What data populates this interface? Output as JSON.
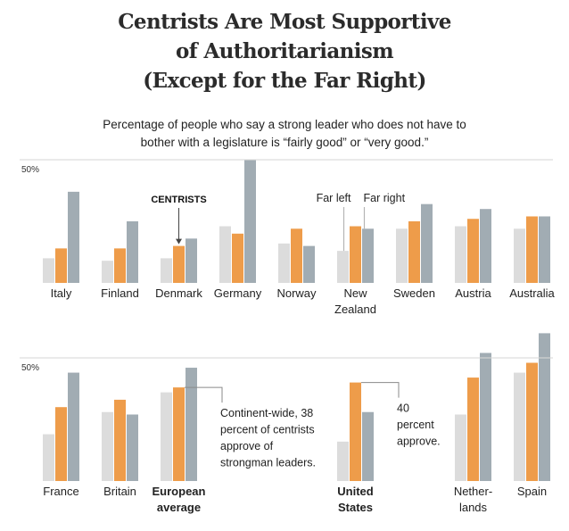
{
  "title_lines": [
    "Centrists Are Most Supportive",
    "of Authoritarianism",
    "(Except for the Far Right)"
  ],
  "subtitle_lines": [
    "Percentage of people who say a strong leader who does not have to",
    "bother with a legislature is “fairly good” or “very good.”"
  ],
  "colors": {
    "far_left": "#dcdcdc",
    "centrists": "#ee9c4a",
    "far_right": "#a1acb3",
    "gridline": "#d8d8d8",
    "annotation_line": "#8a8a8a"
  },
  "chart_data": [
    {
      "type": "bar",
      "title": "Centrists Are Most Supportive of Authoritarianism (Except for the Far Right)",
      "panel": "top",
      "ylabel": "",
      "xlabel": "",
      "ylim": [
        0,
        50
      ],
      "yticks": [
        {
          "value": 50,
          "label": "50%"
        }
      ],
      "grid": true,
      "series_names": [
        "Far left",
        "Centrists",
        "Far right"
      ],
      "categories": [
        {
          "label": [
            "Italy"
          ],
          "bold": false,
          "slot": 0
        },
        {
          "label": [
            "Finland"
          ],
          "bold": false,
          "slot": 1
        },
        {
          "label": [
            "Denmark"
          ],
          "bold": false,
          "slot": 2
        },
        {
          "label": [
            "Germany"
          ],
          "bold": false,
          "slot": 3
        },
        {
          "label": [
            "Norway"
          ],
          "bold": false,
          "slot": 4
        },
        {
          "label": [
            "New",
            "Zealand"
          ],
          "bold": false,
          "slot": 5
        },
        {
          "label": [
            "Sweden"
          ],
          "bold": false,
          "slot": 6
        },
        {
          "label": [
            "Austria"
          ],
          "bold": false,
          "slot": 7
        },
        {
          "label": [
            "Australia"
          ],
          "bold": false,
          "slot": 8
        }
      ],
      "series": [
        {
          "name": "Far left",
          "values": [
            10,
            9,
            10,
            23,
            16,
            13,
            22,
            23,
            22
          ]
        },
        {
          "name": "Centrists",
          "values": [
            14,
            14,
            15,
            20,
            22,
            23,
            25,
            26,
            27
          ]
        },
        {
          "name": "Far right",
          "values": [
            37,
            25,
            18,
            50,
            15,
            22,
            32,
            30,
            27
          ]
        }
      ],
      "annotations": [
        {
          "text": "CENTRISTS",
          "style": "bold",
          "target_category": "Denmark",
          "target_series": "Centrists",
          "kind": "arrow"
        },
        {
          "text": "Far left",
          "style": "normal",
          "target_category": "New Zealand",
          "target_series": "Far left",
          "kind": "line"
        },
        {
          "text": "Far right",
          "style": "normal",
          "target_category": "New Zealand",
          "target_series": "Far right",
          "kind": "line"
        }
      ]
    },
    {
      "type": "bar",
      "panel": "bottom",
      "ylabel": "",
      "xlabel": "",
      "ylim": [
        0,
        50
      ],
      "yticks": [
        {
          "value": 50,
          "label": "50%"
        }
      ],
      "grid": true,
      "series_names": [
        "Far left",
        "Centrists",
        "Far right"
      ],
      "categories": [
        {
          "label": [
            "France"
          ],
          "bold": false,
          "slot": 0
        },
        {
          "label": [
            "Britain"
          ],
          "bold": false,
          "slot": 1
        },
        {
          "label": [
            "European",
            "average"
          ],
          "bold": true,
          "slot": 2
        },
        {
          "label": [
            "United",
            "States"
          ],
          "bold": true,
          "slot": 5
        },
        {
          "label": [
            "Nether-",
            "lands"
          ],
          "bold": false,
          "slot": 7
        },
        {
          "label": [
            "Spain"
          ],
          "bold": false,
          "slot": 8
        }
      ],
      "series": [
        {
          "name": "Far left",
          "values": [
            19,
            28,
            36,
            16,
            27,
            44
          ]
        },
        {
          "name": "Centrists",
          "values": [
            30,
            33,
            38,
            40,
            42,
            48
          ]
        },
        {
          "name": "Far right",
          "values": [
            44,
            27,
            46,
            28,
            52,
            60
          ]
        }
      ],
      "annotations": [
        {
          "lines": [
            "Continent-wide, 38",
            "percent of centrists",
            "approve of",
            "strongman leaders."
          ],
          "target_category": "European average",
          "target_series": "Centrists",
          "kind": "bracket"
        },
        {
          "lines": [
            "40",
            "percent",
            "approve."
          ],
          "target_category": "United States",
          "target_series": "Centrists",
          "kind": "bracket"
        }
      ]
    }
  ]
}
